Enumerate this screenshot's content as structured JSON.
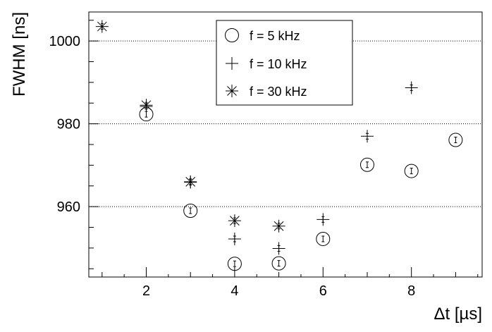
{
  "chart_data": {
    "type": "scatter",
    "title": "",
    "xlabel": "Δt [µs]",
    "ylabel": "FWHM [ns]",
    "xlim": [
      0.7,
      9.6
    ],
    "ylim": [
      943,
      1007
    ],
    "x_ticks": [
      "2",
      "4",
      "6",
      "8"
    ],
    "y_ticks": [
      "960",
      "980",
      "1000"
    ],
    "x_tick_values": [
      2,
      4,
      6,
      8
    ],
    "y_tick_values": [
      960,
      980,
      1000
    ],
    "grid": "horizontal dotted at major y ticks",
    "legend_position": "top-center",
    "series": [
      {
        "name": "f = 5 kHz",
        "marker": "open-circle",
        "x": [
          2,
          3,
          4,
          5,
          6,
          7,
          8,
          9
        ],
        "y": [
          982.3,
          959.0,
          946.2,
          946.3,
          952.2,
          970.1,
          968.6,
          976.1
        ]
      },
      {
        "name": "f = 10 kHz",
        "marker": "plus",
        "x": [
          2,
          3,
          4,
          5,
          6,
          7,
          8
        ],
        "y": [
          984.2,
          965.9,
          952.2,
          949.9,
          956.9,
          977.0,
          988.7
        ]
      },
      {
        "name": "f = 30 kHz",
        "marker": "asterisk",
        "x": [
          1,
          2,
          3,
          4,
          5
        ],
        "y": [
          1003.5,
          984.5,
          966.0,
          956.6,
          955.3
        ]
      }
    ]
  }
}
